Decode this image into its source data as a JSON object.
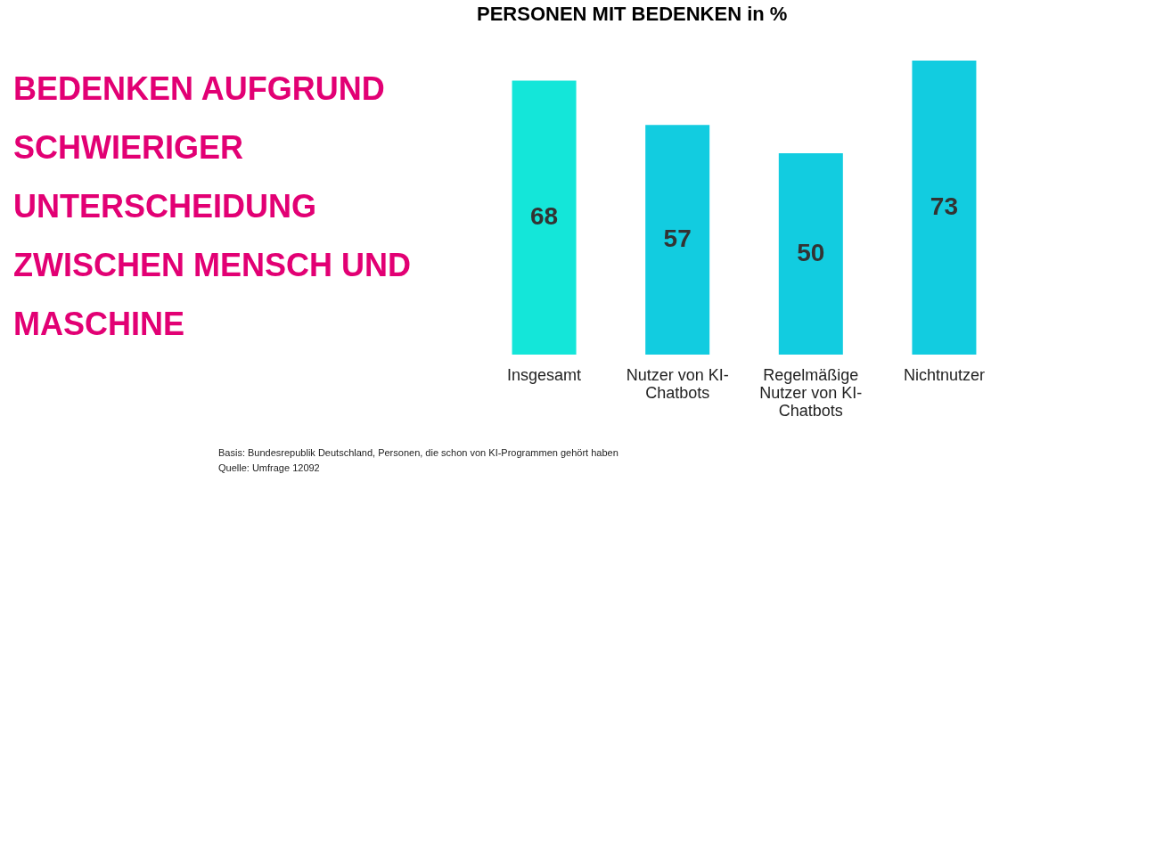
{
  "chart_data": {
    "type": "bar",
    "title": "BEDENKEN AUFGRUND SCHWIERIGER UNTERSCHEIDUNG ZWISCHEN MENSCH UND MASCHINE",
    "subtitle": "PERSONEN MIT BEDENKEN in %",
    "categories": [
      "Insgesamt",
      "Nutzer von KI-Chatbots",
      "Regelmäßige Nutzer von KI-Chatbots",
      "Nichtnutzer"
    ],
    "values": [
      68,
      57,
      50,
      73
    ],
    "colors": [
      "#14e6d9",
      "#12cce0",
      "#12cce0",
      "#12cce0"
    ],
    "data_labels": true,
    "tick_labels": "x",
    "grid": false,
    "annotations": [
      "Basis: Bundesrepublik Deutschland, Personen, die schon von KI-Programmen gehört haben",
      "Quelle: Umfrage 12092"
    ]
  }
}
